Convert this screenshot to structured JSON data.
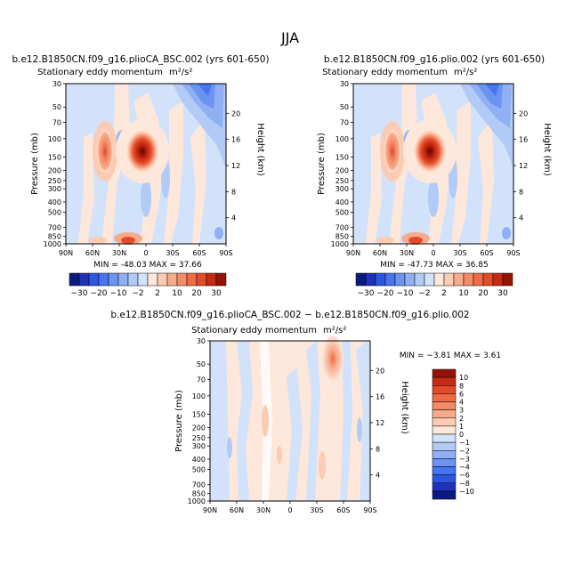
{
  "figure": {
    "season": "JJA"
  },
  "colors": {
    "negative": [
      "#0a1a80",
      "#1c33b8",
      "#2c55e0",
      "#4774f0",
      "#6a93f2",
      "#8fb0f4",
      "#b2cbf6",
      "#d2e2fb"
    ],
    "positive": [
      "#fde7da",
      "#fbcbb3",
      "#f8ab8a",
      "#f48a66",
      "#ef6a45",
      "#e34a2a",
      "#c52a12",
      "#951204"
    ]
  },
  "chart_data": [
    {
      "id": "panel-1",
      "type": "heatmap",
      "run": "b.e12.B1850CN.f09_g16.plioCA_BSC.002 (yrs 601-650)",
      "title": "Stationary eddy momentum",
      "units": "m²/s²",
      "xlabel": "",
      "ylabel": "Pressure (mb)",
      "y2label": "Height (km)",
      "x_ticks": [
        "90N",
        "60N",
        "30N",
        "0",
        "30S",
        "60S",
        "90S"
      ],
      "y_ticks": [
        30,
        50,
        70,
        100,
        150,
        200,
        250,
        300,
        400,
        500,
        700,
        850,
        1000
      ],
      "y2_ticks": [
        20,
        16,
        12,
        8,
        4
      ],
      "ylim": [
        1000,
        30
      ],
      "min": -48.03,
      "max": 37.66,
      "stats_label": "MIN = -48.03   MAX =  37.66",
      "colorbar_levels": [
        -30,
        -20,
        -10,
        -2,
        2,
        10,
        20,
        30
      ],
      "features": [
        {
          "lat": -5,
          "pressure": 150,
          "value": 37.66,
          "sign": "positive"
        },
        {
          "lat": 42,
          "pressure": 150,
          "value": 20,
          "sign": "positive"
        },
        {
          "lat": 15,
          "pressure": 150,
          "value": -6,
          "sign": "negative"
        },
        {
          "lat": -58,
          "pressure": 45,
          "value": -20,
          "sign": "negative"
        },
        {
          "lat": 20,
          "pressure": 950,
          "value": 8,
          "sign": "positive"
        }
      ]
    },
    {
      "id": "panel-2",
      "type": "heatmap",
      "run": "b.e12.B1850CN.f09_g16.plio.002 (yrs 601-650)",
      "title": "Stationary eddy momentum",
      "units": "m²/s²",
      "xlabel": "",
      "ylabel": "Pressure (mb)",
      "y2label": "Height (km)",
      "x_ticks": [
        "90N",
        "60N",
        "30N",
        "0",
        "30S",
        "60S",
        "90S"
      ],
      "y_ticks": [
        30,
        50,
        70,
        100,
        150,
        200,
        250,
        300,
        400,
        500,
        700,
        850,
        1000
      ],
      "y2_ticks": [
        20,
        16,
        12,
        8,
        4
      ],
      "ylim": [
        1000,
        30
      ],
      "min": -47.73,
      "max": 36.85,
      "stats_label": "MIN = -47.73   MAX =  36.85",
      "colorbar_levels": [
        -30,
        -20,
        -10,
        -2,
        2,
        10,
        20,
        30
      ],
      "features": [
        {
          "lat": -5,
          "pressure": 150,
          "value": 36.85,
          "sign": "positive"
        },
        {
          "lat": 42,
          "pressure": 150,
          "value": 20,
          "sign": "positive"
        },
        {
          "lat": 15,
          "pressure": 150,
          "value": -6,
          "sign": "negative"
        },
        {
          "lat": -58,
          "pressure": 45,
          "value": -20,
          "sign": "negative"
        },
        {
          "lat": 20,
          "pressure": 950,
          "value": 8,
          "sign": "positive"
        }
      ]
    },
    {
      "id": "panel-diff",
      "type": "heatmap",
      "run": "b.e12.B1850CN.f09_g16.plioCA_BSC.002 − b.e12.B1850CN.f09_g16.plio.002",
      "title": "Stationary eddy momentum",
      "units": "m²/s²",
      "xlabel": "",
      "ylabel": "Pressure (mb)",
      "y2label": "Height (km)",
      "x_ticks": [
        "90N",
        "60N",
        "30N",
        "0",
        "30S",
        "60S",
        "90S"
      ],
      "y_ticks": [
        30,
        50,
        70,
        100,
        150,
        200,
        250,
        300,
        400,
        500,
        700,
        850,
        1000
      ],
      "y2_ticks": [
        20,
        16,
        12,
        8,
        4
      ],
      "ylim": [
        1000,
        30
      ],
      "min": -3.81,
      "max": 3.61,
      "stats_label": "MIN = −3.81   MAX =   3.61",
      "colorbar_levels": [
        10,
        8,
        6,
        4,
        3,
        2,
        1,
        0,
        -1,
        -2,
        -3,
        -4,
        -6,
        -8,
        -10
      ],
      "features": [
        {
          "lat": -60,
          "pressure": 35,
          "value": 3.61,
          "sign": "positive"
        },
        {
          "lat": 20,
          "pressure": 150,
          "value": 1,
          "sign": "positive"
        },
        {
          "lat": -35,
          "pressure": 300,
          "value": 1,
          "sign": "positive"
        },
        {
          "lat": 60,
          "pressure": 300,
          "value": -1,
          "sign": "negative"
        }
      ]
    }
  ]
}
